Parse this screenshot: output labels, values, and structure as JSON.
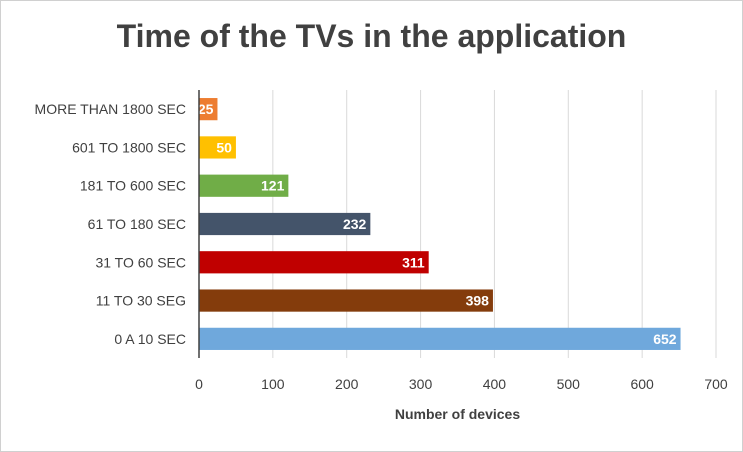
{
  "chart_data": {
    "type": "bar",
    "orientation": "horizontal",
    "title": "Time of the TVs in the application",
    "xlabel": "Number of devices",
    "ylabel": "",
    "categories": [
      "0 A 10 SEC",
      "11 TO 30 SEG",
      "31 TO 60 SEC",
      "61 TO 180 SEC",
      "181 TO 600 SEC",
      "601 TO 1800 SEC",
      "MORE THAN 1800 SEC"
    ],
    "values": [
      652,
      398,
      311,
      232,
      121,
      50,
      25
    ],
    "colors": [
      "#6fa8dc",
      "#843c0c",
      "#c00000",
      "#44546a",
      "#70ad47",
      "#ffc000",
      "#ed7d31"
    ],
    "xlim": [
      0,
      700
    ],
    "xticks": [
      0,
      100,
      200,
      300,
      400,
      500,
      600,
      700
    ],
    "grid": true,
    "data_labels": true
  }
}
